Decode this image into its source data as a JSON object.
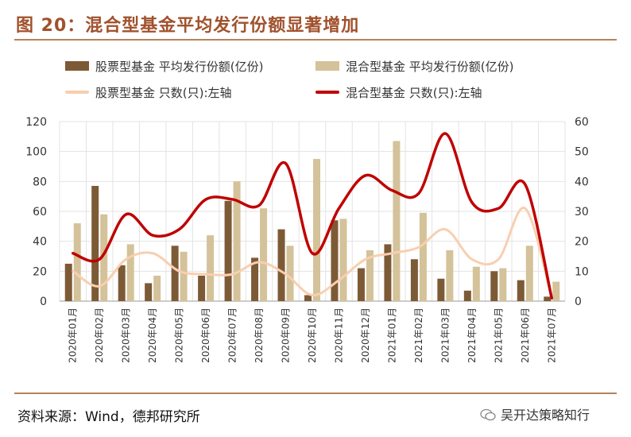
{
  "header": {
    "title": "图 20：混合型基金平均发行份额显著增加"
  },
  "legend": {
    "items": [
      {
        "label": "股票型基金 平均发行份额(亿份)",
        "color": "#7d5a36",
        "kind": "bar"
      },
      {
        "label": "混合型基金 平均发行份额(亿份)",
        "color": "#d4c29a",
        "kind": "bar"
      },
      {
        "label": "股票型基金 只数(只):左轴",
        "color": "#f8cfb0",
        "kind": "line"
      },
      {
        "label": "混合型基金 只数(只):左轴",
        "color": "#c00000",
        "kind": "line"
      }
    ]
  },
  "footer": {
    "source": "资料来源：Wind，德邦研究所",
    "brand": "吴开达策略知行"
  },
  "chart_data": {
    "type": "bar",
    "categories": [
      "2020年01月",
      "2020年02月",
      "2020年03月",
      "2020年04月",
      "2020年05月",
      "2020年06月",
      "2020年07月",
      "2020年08月",
      "2020年09月",
      "2020年10月",
      "2020年11月",
      "2020年12月",
      "2021年01月",
      "2021年02月",
      "2021年03月",
      "2021年04月",
      "2021年05月",
      "2021年06月",
      "2021年07月"
    ],
    "y_left": {
      "min": 0,
      "max": 120,
      "ticks": [
        "0",
        "20",
        "40",
        "60",
        "80",
        "100",
        "120"
      ]
    },
    "y_right": {
      "min": 0,
      "max": 60,
      "ticks": [
        "0",
        "10",
        "20",
        "30",
        "40",
        "50",
        "60"
      ]
    },
    "grid": true,
    "legend_position": "top",
    "series": [
      {
        "name": "股票型基金 平均发行份额(亿份)",
        "kind": "bar",
        "axis": "left",
        "color": "#7d5a36",
        "values": [
          25,
          77,
          24,
          12,
          37,
          17,
          67,
          29,
          48,
          4,
          54,
          22,
          38,
          28,
          15,
          7,
          20,
          14,
          3
        ]
      },
      {
        "name": "混合型基金 平均发行份额(亿份)",
        "kind": "bar",
        "axis": "left",
        "color": "#d4c29a",
        "values": [
          52,
          58,
          38,
          17,
          33,
          44,
          80,
          62,
          37,
          95,
          55,
          34,
          107,
          59,
          34,
          23,
          22,
          37,
          13
        ]
      },
      {
        "name": "股票型基金 只数(只):左轴",
        "kind": "line",
        "axis": "right",
        "color": "#f8cfb0",
        "values": [
          10,
          5,
          14,
          16,
          10,
          9,
          9,
          13,
          9,
          2,
          7,
          14,
          16,
          18,
          24,
          14,
          14,
          31,
          1
        ]
      },
      {
        "name": "混合型基金 只数(只):左轴",
        "kind": "line",
        "axis": "right",
        "color": "#c00000",
        "values": [
          16,
          14,
          29,
          22,
          24,
          34,
          34,
          32,
          46,
          16,
          31,
          42,
          37,
          36,
          56,
          33,
          31,
          39,
          1
        ]
      }
    ]
  }
}
